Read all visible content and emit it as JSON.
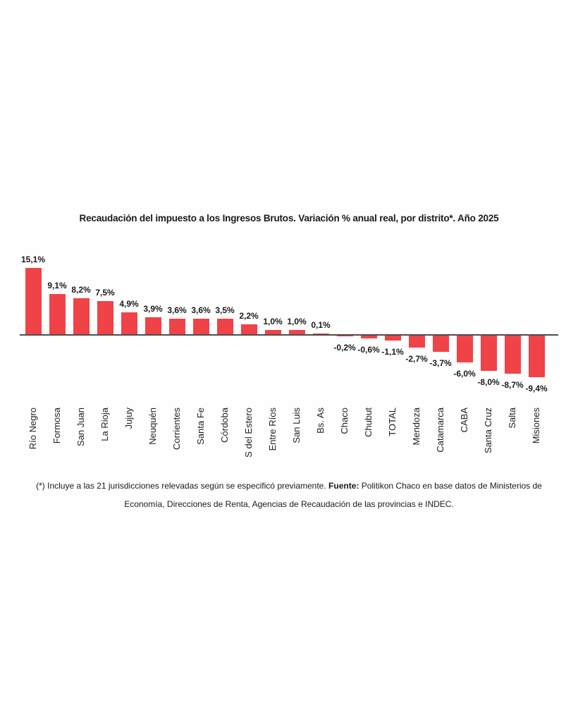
{
  "chart_data": {
    "type": "bar",
    "title": "Recaudación del impuesto a los Ingresos Brutos. Variación % anual real, por distrito*. Año 2025",
    "categories": [
      "Río Negro",
      "Formosa",
      "San Juan",
      "La Rioja",
      "Jujuy",
      "Neuquén",
      "Corrientes",
      "Santa Fe",
      "Córdoba",
      "S del Estero",
      "Entre Ríos",
      "San Luis",
      "Bs. As",
      "Chaco",
      "Chubut",
      "TOTAL",
      "Mendoza",
      "Catamarca",
      "CABA",
      "Santa Cruz",
      "Salta",
      "Misiones"
    ],
    "values": [
      15.1,
      9.1,
      8.2,
      7.5,
      4.9,
      3.9,
      3.6,
      3.6,
      3.5,
      2.2,
      1.0,
      1.0,
      0.1,
      -0.2,
      -0.6,
      -1.1,
      -2.7,
      -3.7,
      -6.0,
      -8.0,
      -8.7,
      -9.4
    ],
    "value_labels": [
      "15,1%",
      "9,1%",
      "8,2%",
      "7,5%",
      "4,9%",
      "3,9%",
      "3,6%",
      "3,6%",
      "3,5%",
      "2,2%",
      "1,0%",
      "1,0%",
      "0,1%",
      "-0,2%",
      "-0,6%",
      "-1,1%",
      "-2,7%",
      "-3,7%",
      "-6,0%",
      "-8,0%",
      "-8,7%",
      "-9,4%"
    ],
    "unit": "%",
    "ylim": [
      -10,
      16
    ],
    "grid": false,
    "legend": false,
    "bar_color": "#F04348",
    "axis_line_color": "#4D4D4D",
    "text_color": "#1A1A1A",
    "xlabel": "",
    "ylabel": ""
  },
  "footnote": {
    "part1": "(*) Incluye a las 21 jurisdicciones relevadas según se especificó previamente. ",
    "fuente_label": "Fuente:",
    "part2": " Politikon Chaco en base datos de Ministerios de",
    "line2": "Economía, Direcciones de Renta, Agencias de Recaudación de las provincias e INDEC."
  }
}
